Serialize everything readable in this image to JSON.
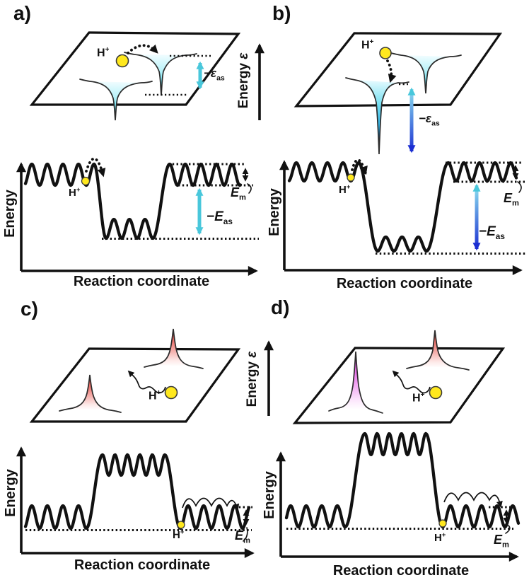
{
  "figure": {
    "panel_letters": {
      "a": "a)",
      "b": "b)",
      "c": "c)",
      "d": "d)"
    },
    "proton": {
      "base": "H",
      "sup": "+"
    },
    "surface_axis": {
      "word": "Energy",
      "symbol": "ε"
    },
    "plot": {
      "ylabel": "Energy",
      "xlabel": "Reaction coordinate"
    },
    "annotations": {
      "site_energy_surface": {
        "main": "−ε",
        "sub": "as"
      },
      "site_energy_plot": {
        "main": "−E",
        "sub": "as"
      },
      "migration_barrier": {
        "main": "E",
        "sub": "m"
      }
    },
    "colors": {
      "cyan": "#49c7db",
      "deep_blue": "#1b2ed2",
      "well_cyan": "#16cce6",
      "red": "#e5362c",
      "magenta": "#e026df",
      "proton_yellow": "#ffe81e",
      "ink": "#111111"
    }
  }
}
